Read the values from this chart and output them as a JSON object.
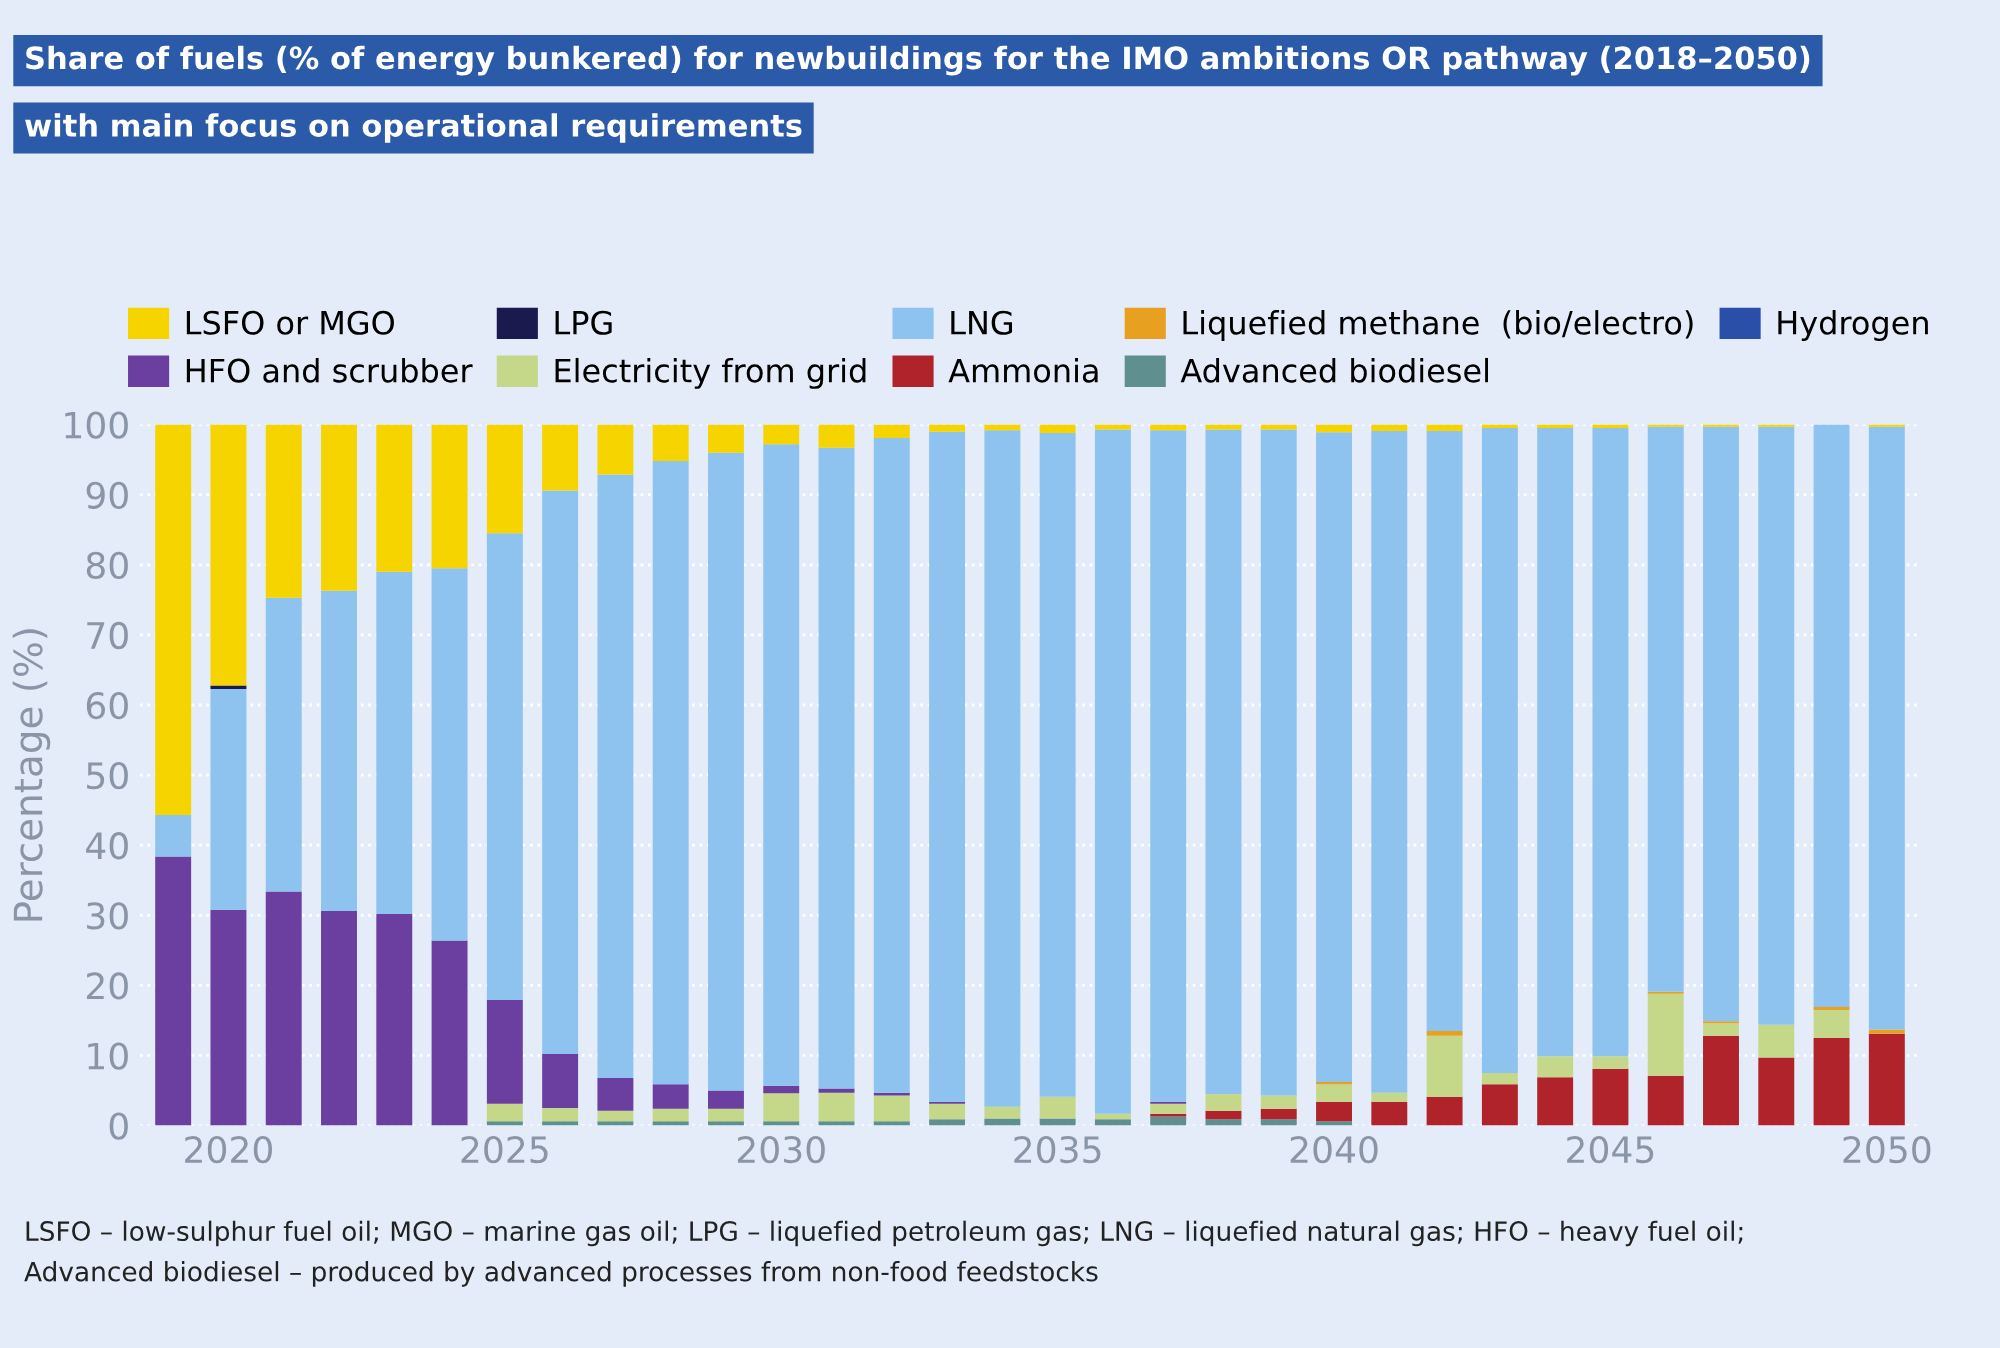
{
  "chart_data": {
    "type": "bar",
    "stacked": true,
    "title": "Share of fuels (% of energy bunkered) for newbuildings for the IMO ambitions OR pathway (2018–2050)",
    "subtitle": "with main focus on operational requirements",
    "ylabel": "Percentage (%)",
    "categories": [
      null,
      "2020",
      null,
      null,
      null,
      null,
      "2025",
      null,
      null,
      null,
      null,
      "2030",
      null,
      null,
      null,
      null,
      "2035",
      null,
      null,
      null,
      null,
      "2040",
      null,
      null,
      null,
      null,
      "2045",
      null,
      null,
      null,
      null,
      "2050"
    ],
    "ylim": [
      0,
      100
    ],
    "yticks": [
      0,
      10,
      20,
      30,
      40,
      50,
      60,
      70,
      80,
      90,
      100
    ],
    "grid": "y",
    "legend": "top",
    "series": [
      {
        "name": "Advanced biodiesel",
        "color": "#5f8f8f",
        "values": [
          0,
          0,
          0,
          0,
          0,
          0,
          0.6,
          0.6,
          0.6,
          0.6,
          0.6,
          0.6,
          0.6,
          0.6,
          0.9,
          1.0,
          1.0,
          0.9,
          1.3,
          0.9,
          0.9,
          0.6,
          0,
          0,
          0,
          0,
          0,
          0,
          0,
          0,
          0,
          0
        ]
      },
      {
        "name": "Ammonia",
        "color": "#b0232a",
        "values": [
          0,
          0,
          0,
          0,
          0,
          0,
          0,
          0,
          0,
          0,
          0,
          0,
          0,
          0,
          0,
          0,
          0,
          0,
          0.4,
          1.2,
          1.5,
          2.8,
          3.4,
          4.1,
          5.9,
          6.9,
          8.1,
          7.1,
          12.8,
          9.7,
          12.5,
          13.1
        ]
      },
      {
        "name": "Electricity from grid",
        "color": "#c5d88a",
        "values": [
          0,
          0,
          0,
          0,
          0,
          0,
          2.5,
          1.9,
          1.5,
          1.8,
          1.8,
          4.0,
          4.1,
          3.7,
          2.2,
          1.7,
          3.1,
          0.8,
          1.4,
          2.4,
          1.9,
          2.5,
          1.3,
          8.7,
          1.6,
          3.0,
          1.8,
          11.7,
          1.8,
          4.7,
          4.0,
          0
        ]
      },
      {
        "name": "HFO and scrubber",
        "color": "#6b3fa0",
        "values": [
          38.4,
          30.8,
          33.4,
          30.6,
          30.2,
          26.4,
          14.8,
          7.7,
          4.7,
          3.5,
          2.6,
          1.1,
          0.6,
          0.4,
          0.3,
          0,
          0,
          0,
          0.3,
          0,
          0,
          0,
          0,
          0,
          0,
          0,
          0,
          0,
          0,
          0,
          0,
          0
        ]
      },
      {
        "name": "Liquefied methane  (bio/electro)",
        "color": "#e8a020",
        "values": [
          0,
          0,
          0,
          0,
          0,
          0,
          0,
          0,
          0,
          0,
          0,
          0,
          0,
          0,
          0,
          0,
          0,
          0,
          0,
          0,
          0,
          0.3,
          0,
          0.7,
          0,
          0,
          0,
          0.3,
          0.3,
          0,
          0.4,
          0.6
        ]
      },
      {
        "name": "LNG",
        "color": "#8ec3ef",
        "values": [
          5.9,
          31.5,
          41.9,
          45.7,
          48.8,
          53.1,
          66.6,
          80.4,
          86.1,
          88.9,
          91.0,
          91.5,
          91.4,
          93.4,
          95.6,
          96.5,
          94.7,
          97.6,
          95.8,
          94.8,
          95.0,
          92.7,
          94.4,
          85.6,
          92.0,
          89.6,
          89.6,
          80.6,
          84.8,
          85.3,
          83.1,
          86.0
        ]
      },
      {
        "name": "LPG",
        "color": "#1a1a4e",
        "values": [
          0,
          0.5,
          0,
          0,
          0,
          0,
          0,
          0,
          0,
          0,
          0,
          0,
          0,
          0,
          0,
          0,
          0,
          0,
          0,
          0,
          0,
          0,
          0,
          0,
          0,
          0,
          0,
          0,
          0,
          0,
          0,
          0
        ]
      },
      {
        "name": "Hydrogen",
        "color": "#2a4fa8",
        "values": [
          0,
          0,
          0,
          0,
          0,
          0,
          0,
          0,
          0,
          0,
          0,
          0,
          0,
          0,
          0,
          0,
          0,
          0,
          0,
          0,
          0,
          0,
          0,
          0,
          0,
          0,
          0,
          0,
          0,
          0,
          0,
          0
        ]
      },
      {
        "name": "LSFO or MGO",
        "color": "#f5d400",
        "values": [
          55.7,
          37.2,
          24.7,
          23.7,
          21.0,
          20.5,
          15.5,
          9.4,
          7.1,
          5.2,
          4.0,
          2.8,
          3.3,
          1.9,
          1.0,
          0.8,
          1.2,
          0.7,
          0.8,
          0.7,
          0.7,
          1.1,
          0.9,
          0.9,
          0.5,
          0.5,
          0.5,
          0.3,
          0.3,
          0.3,
          0,
          0.3
        ]
      }
    ],
    "annotations": [
      "LSFO – low-sulphur fuel oil; MGO – marine gas oil; LPG – liquefied petroleum gas; LNG – liquefied natural gas; HFO – heavy fuel oil;",
      "Advanced biodiesel – produced by advanced processes from non-food feedstocks"
    ]
  }
}
